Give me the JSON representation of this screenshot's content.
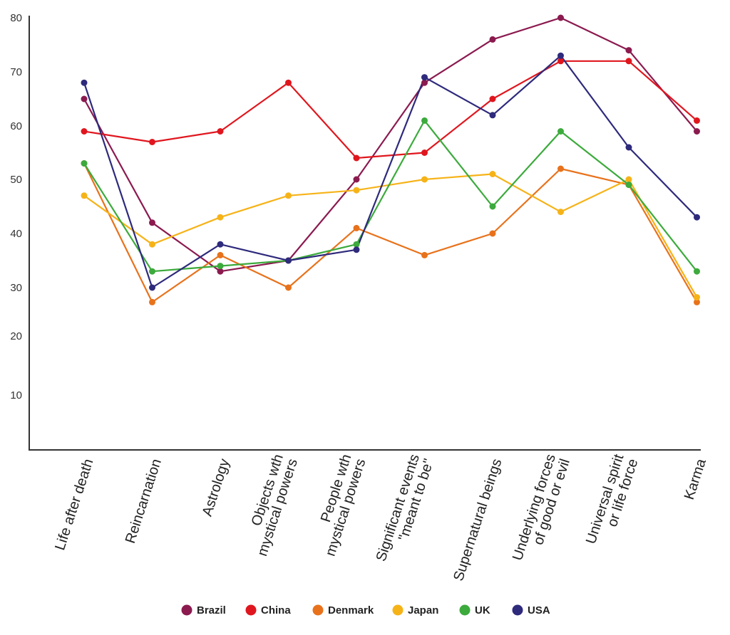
{
  "chart_data": {
    "type": "line",
    "title": "",
    "xlabel": "",
    "ylabel": "",
    "y_ticks": [
      "10",
      "20",
      "30",
      "40",
      "50",
      "60",
      "70",
      "80"
    ],
    "ylim": [
      0,
      80
    ],
    "grid": false,
    "legend_position": "bottom",
    "categories": [
      [
        "Life after death"
      ],
      [
        "Reincarnation"
      ],
      [
        "Astrology"
      ],
      [
        "Objects wth",
        "mystical powers"
      ],
      [
        "People wth",
        "mystical powers"
      ],
      [
        "Significant events",
        "\"meant to be\""
      ],
      [
        "Supernatural beings"
      ],
      [
        "Underlying forces",
        "of good or evil"
      ],
      [
        "Universal spirit",
        "or life force"
      ],
      [
        "Karma"
      ]
    ],
    "series": [
      {
        "name": "Brazil",
        "color": "#8b1a4f",
        "values": [
          65,
          42,
          33,
          35,
          50,
          68,
          76,
          80,
          74,
          59
        ]
      },
      {
        "name": "China",
        "color": "#e0161e",
        "values": [
          59,
          57,
          59,
          68,
          54,
          55,
          65,
          72,
          72,
          61
        ]
      },
      {
        "name": "Denmark",
        "color": "#e8721b",
        "values": [
          53,
          27,
          36,
          30,
          41,
          36,
          40,
          52,
          49,
          27
        ]
      },
      {
        "name": "Japan",
        "color": "#f6b318",
        "values": [
          47,
          38,
          43,
          47,
          48,
          50,
          51,
          44,
          50,
          28
        ]
      },
      {
        "name": "UK",
        "color": "#3caa3c",
        "values": [
          53,
          33,
          34,
          35,
          38,
          61,
          45,
          59,
          49,
          33
        ]
      },
      {
        "name": "USA",
        "color": "#2e2a7c",
        "values": [
          68,
          30,
          38,
          35,
          37,
          69,
          62,
          73,
          56,
          43
        ]
      }
    ]
  }
}
